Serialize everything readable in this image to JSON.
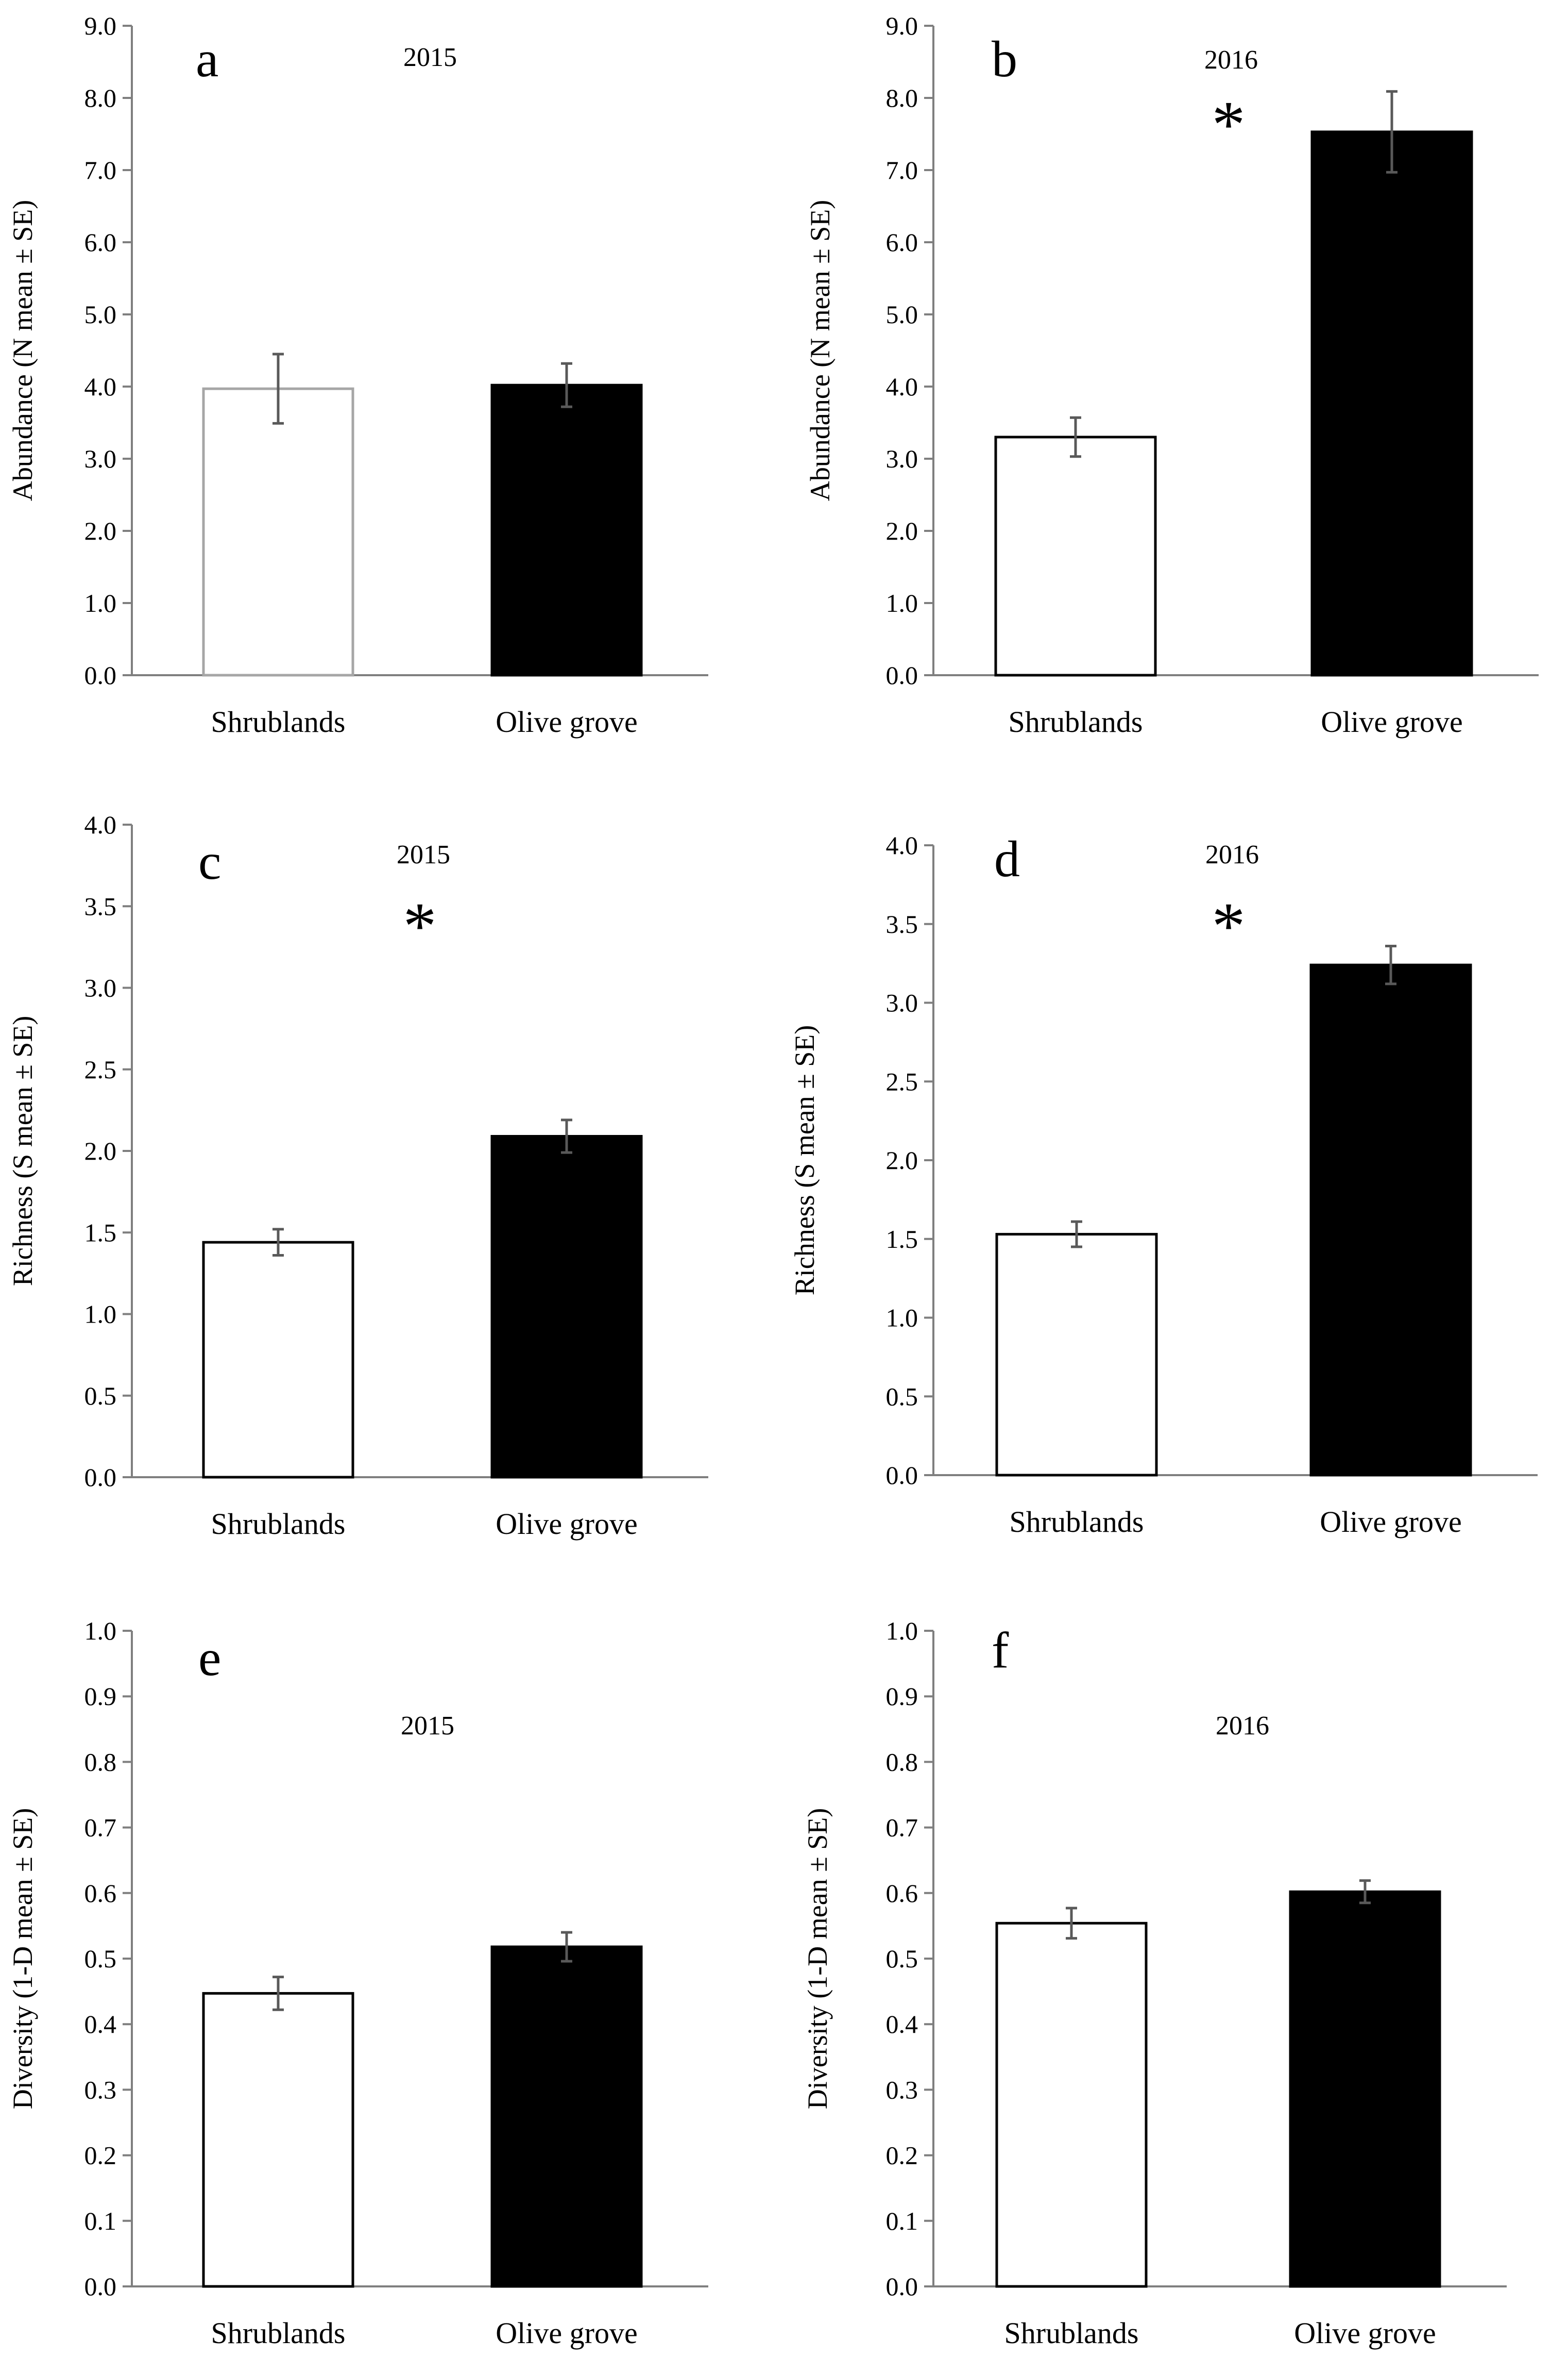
{
  "chart_data": [
    {
      "panel": "a",
      "type": "bar",
      "year": "2015",
      "significance": "",
      "ylabel": "Abundance (N mean ± SE)",
      "ylim": [
        0,
        9
      ],
      "yticks": [
        0,
        1,
        2,
        3,
        4,
        5,
        6,
        7,
        8,
        9
      ],
      "ytick_labels": [
        "0.0",
        "1.0",
        "2.0",
        "3.0",
        "4.0",
        "5.0",
        "6.0",
        "7.0",
        "8.0",
        "9.0"
      ],
      "categories": [
        "Shrublands",
        "Olive grove"
      ],
      "values": [
        3.97,
        4.02
      ],
      "errors": [
        0.48,
        0.3
      ],
      "bar_fills": [
        "#ffffff",
        "#000000"
      ],
      "bar_strokes": [
        "#a6a6a6",
        "#000000"
      ]
    },
    {
      "panel": "b",
      "type": "bar",
      "year": "2016",
      "significance": "*",
      "ylabel": "Abundance (N mean ± SE)",
      "ylim": [
        0,
        9
      ],
      "yticks": [
        0,
        1,
        2,
        3,
        4,
        5,
        6,
        7,
        8,
        9
      ],
      "ytick_labels": [
        "0.0",
        "1.0",
        "2.0",
        "3.0",
        "4.0",
        "5.0",
        "6.0",
        "7.0",
        "8.0",
        "9.0"
      ],
      "categories": [
        "Shrublands",
        "Olive grove"
      ],
      "values": [
        3.3,
        7.53
      ],
      "errors": [
        0.27,
        0.56
      ],
      "bar_fills": [
        "#ffffff",
        "#000000"
      ],
      "bar_strokes": [
        "#000000",
        "#000000"
      ]
    },
    {
      "panel": "c",
      "type": "bar",
      "year": "2015",
      "significance": "*",
      "ylabel": "Richness (S mean ± SE)",
      "ylim": [
        0,
        4
      ],
      "yticks": [
        0,
        0.5,
        1,
        1.5,
        2,
        2.5,
        3,
        3.5,
        4
      ],
      "ytick_labels": [
        "0.0",
        "0.5",
        "1.0",
        "1.5",
        "2.0",
        "2.5",
        "3.0",
        "3.5",
        "4.0"
      ],
      "categories": [
        "Shrublands",
        "Olive grove"
      ],
      "values": [
        1.44,
        2.09
      ],
      "errors": [
        0.08,
        0.1
      ],
      "bar_fills": [
        "#ffffff",
        "#000000"
      ],
      "bar_strokes": [
        "#000000",
        "#000000"
      ]
    },
    {
      "panel": "d",
      "type": "bar",
      "year": "2016",
      "significance": "*",
      "ylabel": "Richness (S mean ± SE)",
      "ylim": [
        0,
        4
      ],
      "yticks": [
        0,
        0.5,
        1,
        1.5,
        2,
        2.5,
        3,
        3.5,
        4
      ],
      "ytick_labels": [
        "0.0",
        "0.5",
        "1.0",
        "1.5",
        "2.0",
        "2.5",
        "3.0",
        "3.5",
        "4.0"
      ],
      "categories": [
        "Shrublands",
        "Olive grove"
      ],
      "values": [
        1.53,
        3.24
      ],
      "errors": [
        0.08,
        0.12
      ],
      "bar_fills": [
        "#ffffff",
        "#000000"
      ],
      "bar_strokes": [
        "#000000",
        "#000000"
      ]
    },
    {
      "panel": "e",
      "type": "bar",
      "year": "2015",
      "significance": "",
      "ylabel": "Diversity (1-D mean ± SE)",
      "ylim": [
        0,
        1
      ],
      "yticks": [
        0,
        0.1,
        0.2,
        0.3,
        0.4,
        0.5,
        0.6,
        0.7,
        0.8,
        0.9,
        1
      ],
      "ytick_labels": [
        "0.0",
        "0.1",
        "0.2",
        "0.3",
        "0.4",
        "0.5",
        "0.6",
        "0.7",
        "0.8",
        "0.9",
        "1.0"
      ],
      "categories": [
        "Shrublands",
        "Olive grove"
      ],
      "values": [
        0.447,
        0.518
      ],
      "errors": [
        0.025,
        0.022
      ],
      "bar_fills": [
        "#ffffff",
        "#000000"
      ],
      "bar_strokes": [
        "#000000",
        "#000000"
      ]
    },
    {
      "panel": "f",
      "type": "bar",
      "year": "2016",
      "significance": "",
      "ylabel": "Diversity (1-D mean ± SE)",
      "ylim": [
        0,
        1
      ],
      "yticks": [
        0,
        0.1,
        0.2,
        0.3,
        0.4,
        0.5,
        0.6,
        0.7,
        0.8,
        0.9,
        1
      ],
      "ytick_labels": [
        "0.0",
        "0.1",
        "0.2",
        "0.3",
        "0.4",
        "0.5",
        "0.6",
        "0.7",
        "0.8",
        "0.9",
        "1.0"
      ],
      "categories": [
        "Shrublands",
        "Olive grove"
      ],
      "values": [
        0.554,
        0.602
      ],
      "errors": [
        0.023,
        0.017
      ],
      "bar_fills": [
        "#ffffff",
        "#000000"
      ],
      "bar_strokes": [
        "#000000",
        "#000000"
      ]
    }
  ],
  "colors": {
    "axis": "#7f7f7f",
    "error_bar": "#595959"
  }
}
